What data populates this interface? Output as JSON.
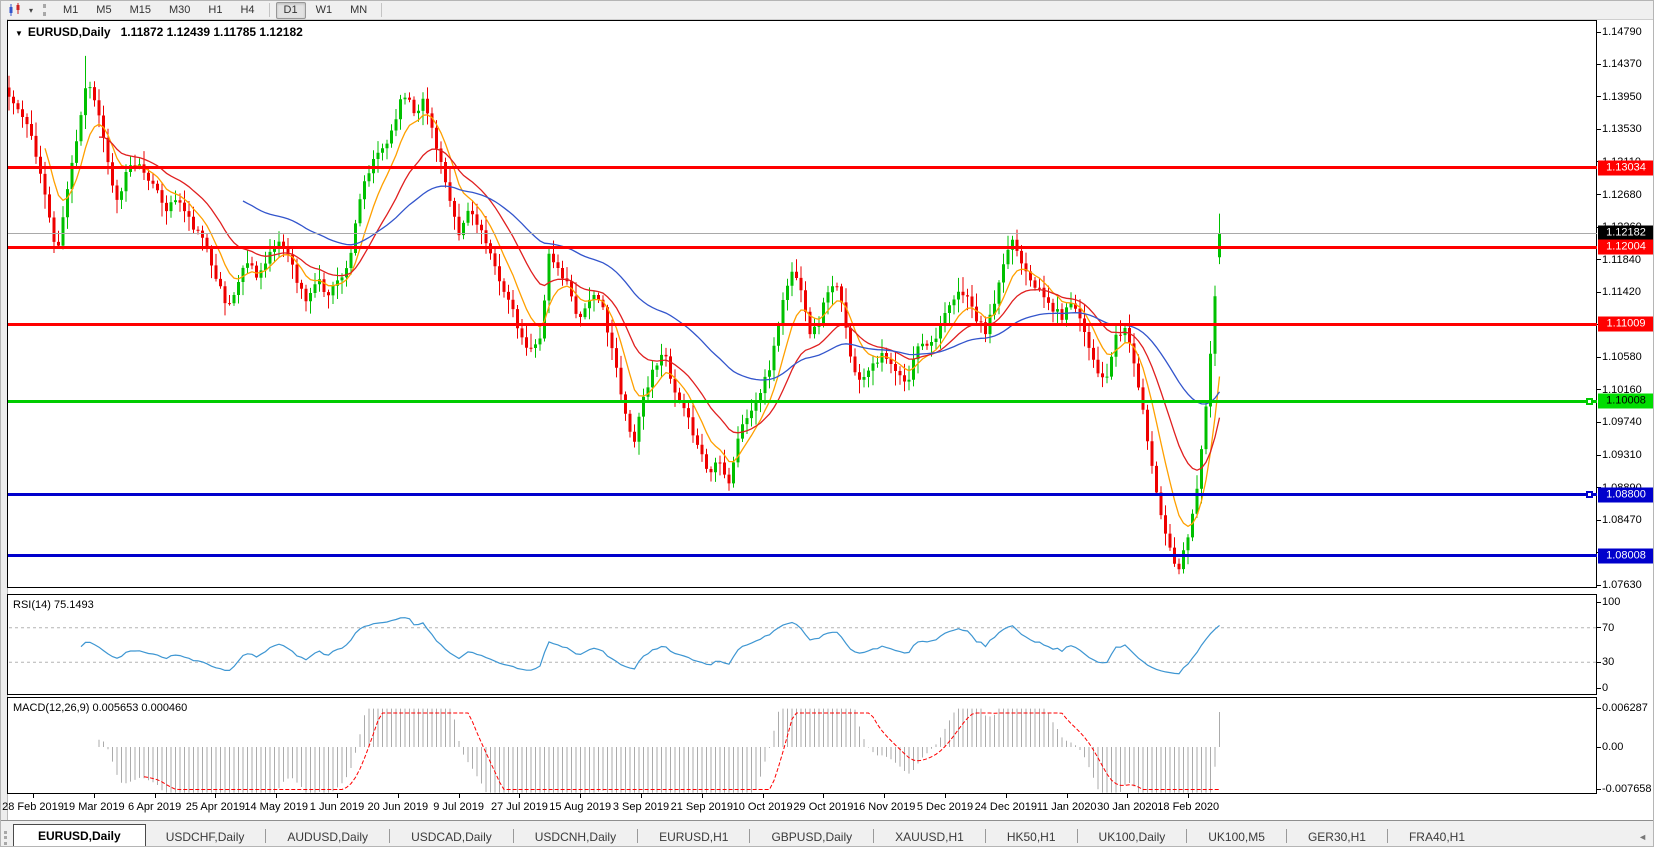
{
  "toolbar": {
    "icons": [
      "chart-type-icon",
      "dropdown-caret-icon",
      "toolbar-grip"
    ],
    "timeframes": [
      "M1",
      "M5",
      "M15",
      "M30",
      "H1",
      "H4",
      "D1",
      "W1",
      "MN"
    ],
    "active_timeframe": "D1"
  },
  "chart": {
    "symbol_title": "EURUSD,Daily",
    "ohlc": "1.11872 1.12439 1.11785 1.12182",
    "price_axis": [
      "1.14790",
      "1.14370",
      "1.13950",
      "1.13530",
      "1.13110",
      "1.12680",
      "1.12260",
      "1.11840",
      "1.11420",
      "1.11000",
      "1.10580",
      "1.10160",
      "1.09740",
      "1.09310",
      "1.08890",
      "1.08470",
      "1.08050",
      "1.07630"
    ],
    "levels": [
      {
        "label": "1.13034",
        "price": 1.13034,
        "style": "resistance-line",
        "line_color": "#ff0000",
        "badge_bg": "#ff0000",
        "badge_fg": "#ffffff",
        "thickness": 3,
        "handle": false
      },
      {
        "label": "1.12182",
        "price": 1.12182,
        "style": "current-price-line",
        "line_color": "#a9a9a9",
        "badge_bg": "#000000",
        "badge_fg": "#ffffff",
        "thickness": 1,
        "handle": false
      },
      {
        "label": "1.12004",
        "price": 1.12004,
        "style": "resistance-line",
        "line_color": "#ff0000",
        "badge_bg": "#ff0000",
        "badge_fg": "#ffffff",
        "thickness": 3,
        "handle": false
      },
      {
        "label": "1.11009",
        "price": 1.11009,
        "style": "resistance-line",
        "line_color": "#ff0000",
        "badge_bg": "#ff0000",
        "badge_fg": "#ffffff",
        "thickness": 3,
        "handle": false
      },
      {
        "label": "1.10008",
        "price": 1.10008,
        "style": "support-line",
        "line_color": "#00cc00",
        "badge_bg": "#00dd00",
        "badge_fg": "#000000",
        "thickness": 3,
        "handle": true
      },
      {
        "label": "1.08800",
        "price": 1.088,
        "style": "support-line",
        "line_color": "#0000cc",
        "badge_bg": "#0000cc",
        "badge_fg": "#ffffff",
        "thickness": 3,
        "handle": true
      },
      {
        "label": "1.08008",
        "price": 1.08008,
        "style": "support-line",
        "line_color": "#0000cc",
        "badge_bg": "#0000cc",
        "badge_fg": "#ffffff",
        "thickness": 3,
        "handle": false
      }
    ],
    "dates": [
      "28 Feb 2019",
      "19 Mar 2019",
      "6 Apr 2019",
      "25 Apr 2019",
      "14 May 2019",
      "1 Jun 2019",
      "20 Jun 2019",
      "9 Jul 2019",
      "27 Jul 2019",
      "15 Aug 2019",
      "3 Sep 2019",
      "21 Sep 2019",
      "10 Oct 2019",
      "29 Oct 2019",
      "16 Nov 2019",
      "5 Dec 2019",
      "24 Dec 2019",
      "11 Jan 2020",
      "30 Jan 2020",
      "18 Feb 2020"
    ]
  },
  "rsi": {
    "label": "RSI(14) 75.1493",
    "axis": [
      "100",
      "70",
      "30",
      "0"
    ],
    "guides": [
      70,
      30
    ],
    "line_color": "#3e96d2"
  },
  "macd": {
    "label": "MACD(12,26,9) 0.005653 0.000460",
    "axis": [
      "0.006287",
      "0.00",
      "-0.007658"
    ],
    "hist_color": "#ababab",
    "signal_color": "#ff0000"
  },
  "tabs": {
    "active": "EURUSD,Daily",
    "scroll_icon": "tab-scroll-left-icon",
    "items": [
      "EURUSD,Daily",
      "USDCHF,Daily",
      "AUDUSD,Daily",
      "USDCAD,Daily",
      "USDCNH,Daily",
      "EURUSD,H1",
      "GBPUSD,Daily",
      "XAUUSD,H1",
      "HK50,H1",
      "UK100,Daily",
      "UK100,M5",
      "GER30,H1",
      "FRA40,H1"
    ]
  },
  "chart_data": {
    "type": "candlestick",
    "symbol": "EURUSD",
    "period": "Daily",
    "visible_range": {
      "price_min": 1.0763,
      "price_max": 1.1479,
      "date_start": "28 Feb 2019",
      "date_end": "18 Feb 2020"
    },
    "last_candle": {
      "open": 1.11872,
      "high": 1.12439,
      "low": 1.11785,
      "close": 1.12182
    },
    "extreme_high": 1.1448,
    "extreme_low": 1.0777,
    "up_color": "#00c000",
    "down_color": "#ee0000",
    "horizontal_lines": [
      1.13034,
      1.12004,
      1.11009,
      1.10008,
      1.088,
      1.08008
    ],
    "moving_averages": [
      {
        "period": 8,
        "color": "#ffa000"
      },
      {
        "period": 20,
        "color": "#e02020"
      },
      {
        "period": 52,
        "color": "#3355cc"
      }
    ],
    "rsi": {
      "period": 14,
      "current": 75.1493,
      "range": [
        0,
        100
      ],
      "guides": [
        70,
        30
      ]
    },
    "macd": {
      "fast": 12,
      "slow": 26,
      "signal_period": 9,
      "macd_current": 0.005653,
      "signal_current": 0.00046,
      "axis_max": 0.006287,
      "axis_min": -0.007658
    },
    "price_path": [
      [
        8,
        1.1395
      ],
      [
        20,
        1.1372
      ],
      [
        32,
        1.134
      ],
      [
        42,
        1.128
      ],
      [
        50,
        1.123
      ],
      [
        56,
        1.1185
      ],
      [
        62,
        1.124
      ],
      [
        70,
        1.13
      ],
      [
        78,
        1.136
      ],
      [
        86,
        1.142
      ],
      [
        94,
        1.139
      ],
      [
        102,
        1.135
      ],
      [
        110,
        1.1285
      ],
      [
        118,
        1.1255
      ],
      [
        126,
        1.13
      ],
      [
        136,
        1.131
      ],
      [
        146,
        1.1295
      ],
      [
        156,
        1.127
      ],
      [
        166,
        1.125
      ],
      [
        176,
        1.1265
      ],
      [
        186,
        1.124
      ],
      [
        196,
        1.122
      ],
      [
        206,
        1.12
      ],
      [
        216,
        1.116
      ],
      [
        226,
        1.112
      ],
      [
        236,
        1.115
      ],
      [
        246,
        1.1185
      ],
      [
        256,
        1.1165
      ],
      [
        266,
        1.118
      ],
      [
        276,
        1.121
      ],
      [
        286,
        1.12
      ],
      [
        296,
        1.1155
      ],
      [
        306,
        1.113
      ],
      [
        316,
        1.116
      ],
      [
        326,
        1.114
      ],
      [
        336,
        1.1155
      ],
      [
        348,
        1.118
      ],
      [
        362,
        1.128
      ],
      [
        376,
        1.132
      ],
      [
        388,
        1.134
      ],
      [
        398,
        1.1385
      ],
      [
        406,
        1.14
      ],
      [
        414,
        1.1375
      ],
      [
        422,
        1.139
      ],
      [
        430,
        1.136
      ],
      [
        440,
        1.131
      ],
      [
        450,
        1.125
      ],
      [
        458,
        1.1215
      ],
      [
        468,
        1.125
      ],
      [
        478,
        1.123
      ],
      [
        490,
        1.1185
      ],
      [
        502,
        1.115
      ],
      [
        512,
        1.1115
      ],
      [
        522,
        1.1075
      ],
      [
        532,
        1.1065
      ],
      [
        540,
        1.109
      ],
      [
        548,
        1.119
      ],
      [
        558,
        1.117
      ],
      [
        568,
        1.115
      ],
      [
        578,
        1.1105
      ],
      [
        590,
        1.114
      ],
      [
        602,
        1.112
      ],
      [
        612,
        1.1065
      ],
      [
        622,
        1.0995
      ],
      [
        632,
        1.0945
      ],
      [
        642,
        1.1005
      ],
      [
        652,
        1.104
      ],
      [
        662,
        1.107
      ],
      [
        672,
        1.1015
      ],
      [
        684,
        1.0985
      ],
      [
        696,
        1.095
      ],
      [
        708,
        1.0905
      ],
      [
        718,
        1.093
      ],
      [
        728,
        1.0895
      ],
      [
        738,
        1.096
      ],
      [
        748,
        1.0985
      ],
      [
        757,
        1.1005
      ],
      [
        768,
        1.104
      ],
      [
        780,
        1.112
      ],
      [
        790,
        1.117
      ],
      [
        800,
        1.115
      ],
      [
        810,
        1.1085
      ],
      [
        818,
        1.1105
      ],
      [
        828,
        1.115
      ],
      [
        838,
        1.1145
      ],
      [
        848,
        1.107
      ],
      [
        858,
        1.1025
      ],
      [
        870,
        1.105
      ],
      [
        882,
        1.106
      ],
      [
        894,
        1.104
      ],
      [
        906,
        1.102
      ],
      [
        918,
        1.108
      ],
      [
        930,
        1.1075
      ],
      [
        942,
        1.1105
      ],
      [
        954,
        1.1135
      ],
      [
        964,
        1.1145
      ],
      [
        974,
        1.111
      ],
      [
        984,
        1.109
      ],
      [
        992,
        1.112
      ],
      [
        1002,
        1.117
      ],
      [
        1010,
        1.1215
      ],
      [
        1018,
        1.119
      ],
      [
        1028,
        1.1165
      ],
      [
        1040,
        1.114
      ],
      [
        1052,
        1.112
      ],
      [
        1062,
        1.111
      ],
      [
        1072,
        1.1135
      ],
      [
        1084,
        1.109
      ],
      [
        1094,
        1.105
      ],
      [
        1104,
        1.102
      ],
      [
        1114,
        1.108
      ],
      [
        1124,
        1.1095
      ],
      [
        1132,
        1.106
      ],
      [
        1140,
        1.1
      ],
      [
        1148,
        1.094
      ],
      [
        1156,
        1.088
      ],
      [
        1164,
        1.0835
      ],
      [
        1171,
        1.08
      ],
      [
        1178,
        1.0788
      ],
      [
        1185,
        1.0815
      ],
      [
        1191,
        1.0855
      ],
      [
        1197,
        1.0895
      ],
      [
        1203,
        1.0965
      ],
      [
        1208,
        1.1035
      ],
      [
        1212,
        1.1105
      ],
      [
        1216,
        1.1165
      ],
      [
        1219,
        1.12182
      ]
    ]
  }
}
